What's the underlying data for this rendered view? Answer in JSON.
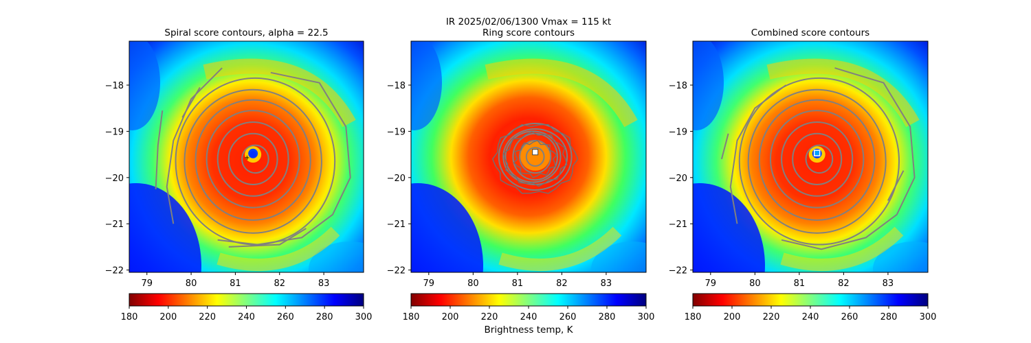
{
  "suptitle_line1": "IR  2025/02/06/1300    Vmax = 115 kt",
  "colorbar_label": "Brightness temp, K",
  "chart_data": [
    {
      "type": "heatmap",
      "title": "Spiral score contours, alpha = 22.5",
      "xlim": [
        78.6,
        83.9
      ],
      "ylim": [
        -22.05,
        -17.05
      ],
      "xticks": [
        79,
        80,
        81,
        82,
        83
      ],
      "yticks": [
        -18,
        -19,
        -20,
        -21,
        -22
      ],
      "center": [
        81.4,
        -19.6
      ],
      "marker": {
        "x": 81.4,
        "y": -19.47,
        "style": "blue-blob"
      },
      "contours": {
        "ellipses": [
          [
            81.45,
            -19.6,
            0.3,
            0.3
          ],
          [
            81.4,
            -19.6,
            0.55,
            0.55
          ],
          [
            81.4,
            -19.6,
            0.8,
            0.8
          ],
          [
            81.4,
            -19.6,
            1.05,
            1.05
          ],
          [
            81.4,
            -19.62,
            1.3,
            1.3
          ],
          [
            81.4,
            -19.65,
            1.55,
            1.55
          ],
          [
            81.45,
            -19.65,
            1.8,
            1.8
          ]
        ],
        "arcs": [
          [
            [
              81.8,
              -17.73
            ],
            [
              82.9,
              -17.95
            ],
            [
              83.5,
              -18.9
            ],
            [
              83.6,
              -20.0
            ],
            [
              83.2,
              -20.8
            ],
            [
              82.5,
              -21.3
            ],
            [
              81.5,
              -21.45
            ],
            [
              80.6,
              -21.35
            ]
          ],
          [
            [
              80.7,
              -17.63
            ],
            [
              80.0,
              -18.3
            ],
            [
              79.6,
              -19.2
            ],
            [
              79.45,
              -20.2
            ],
            [
              79.6,
              -21.0
            ]
          ],
          [
            [
              80.2,
              -18.05
            ],
            [
              79.8,
              -18.7
            ]
          ],
          [
            [
              80.85,
              -21.5
            ],
            [
              82.0,
              -21.45
            ],
            [
              82.6,
              -21.1
            ]
          ],
          [
            [
              79.35,
              -18.55
            ],
            [
              79.25,
              -19.3
            ],
            [
              79.2,
              -20.25
            ]
          ]
        ]
      },
      "colormap": "jet",
      "clim": [
        180,
        300
      ],
      "colorbar_ticks": [
        180,
        200,
        220,
        240,
        260,
        280,
        300
      ]
    },
    {
      "type": "heatmap",
      "title": "Ring score contours",
      "xlim": [
        78.6,
        83.9
      ],
      "ylim": [
        -22.05,
        -17.05
      ],
      "xticks": [
        79,
        80,
        81,
        82,
        83
      ],
      "yticks": [
        -18,
        -19,
        -20,
        -21,
        -22
      ],
      "center": [
        81.4,
        -19.45
      ],
      "marker": {
        "x": 81.4,
        "y": -19.45,
        "style": "white-square"
      },
      "contours": {
        "ellipses": [
          [
            81.4,
            -19.55,
            0.2,
            0.2
          ],
          [
            81.4,
            -19.55,
            0.35,
            0.35
          ],
          [
            81.4,
            -19.55,
            0.5,
            0.5
          ],
          [
            81.35,
            -19.55,
            0.62,
            0.55
          ],
          [
            81.4,
            -19.55,
            0.72,
            0.6
          ],
          [
            81.4,
            -19.55,
            0.82,
            0.72
          ]
        ],
        "arcs": []
      },
      "colormap": "jet",
      "clim": [
        180,
        300
      ],
      "colorbar_ticks": [
        180,
        200,
        220,
        240,
        260,
        280,
        300
      ]
    },
    {
      "type": "heatmap",
      "title": "Combined score contours",
      "xlim": [
        78.6,
        83.9
      ],
      "ylim": [
        -22.05,
        -17.05
      ],
      "xticks": [
        79,
        80,
        81,
        82,
        83
      ],
      "yticks": [
        -18,
        -19,
        -20,
        -21,
        -22
      ],
      "center": [
        81.4,
        -19.6
      ],
      "marker": {
        "x": 81.4,
        "y": -19.47,
        "style": "blue-square"
      },
      "contours": {
        "ellipses": [
          [
            81.45,
            -19.6,
            0.3,
            0.3
          ],
          [
            81.4,
            -19.6,
            0.55,
            0.55
          ],
          [
            81.4,
            -19.6,
            0.8,
            0.8
          ],
          [
            81.4,
            -19.6,
            1.05,
            1.05
          ],
          [
            81.4,
            -19.62,
            1.3,
            1.3
          ],
          [
            81.4,
            -19.65,
            1.55,
            1.55
          ],
          [
            81.45,
            -19.65,
            1.8,
            1.8
          ]
        ],
        "arcs": [
          [
            [
              81.8,
              -17.63
            ],
            [
              82.9,
              -17.95
            ],
            [
              83.5,
              -18.9
            ],
            [
              83.6,
              -20.0
            ],
            [
              83.2,
              -20.8
            ],
            [
              82.5,
              -21.3
            ],
            [
              81.5,
              -21.55
            ],
            [
              80.6,
              -21.35
            ]
          ],
          [
            [
              80.7,
              -18.0
            ],
            [
              80.0,
              -18.5
            ],
            [
              79.6,
              -19.2
            ],
            [
              79.45,
              -20.2
            ],
            [
              79.6,
              -21.0
            ]
          ],
          [
            [
              83.35,
              -19.85
            ],
            [
              83.0,
              -20.5
            ]
          ],
          [
            [
              79.4,
              -19.05
            ],
            [
              79.25,
              -19.6
            ]
          ]
        ]
      },
      "colormap": "jet",
      "clim": [
        180,
        300
      ],
      "colorbar_ticks": [
        180,
        200,
        220,
        240,
        260,
        280,
        300
      ]
    }
  ]
}
